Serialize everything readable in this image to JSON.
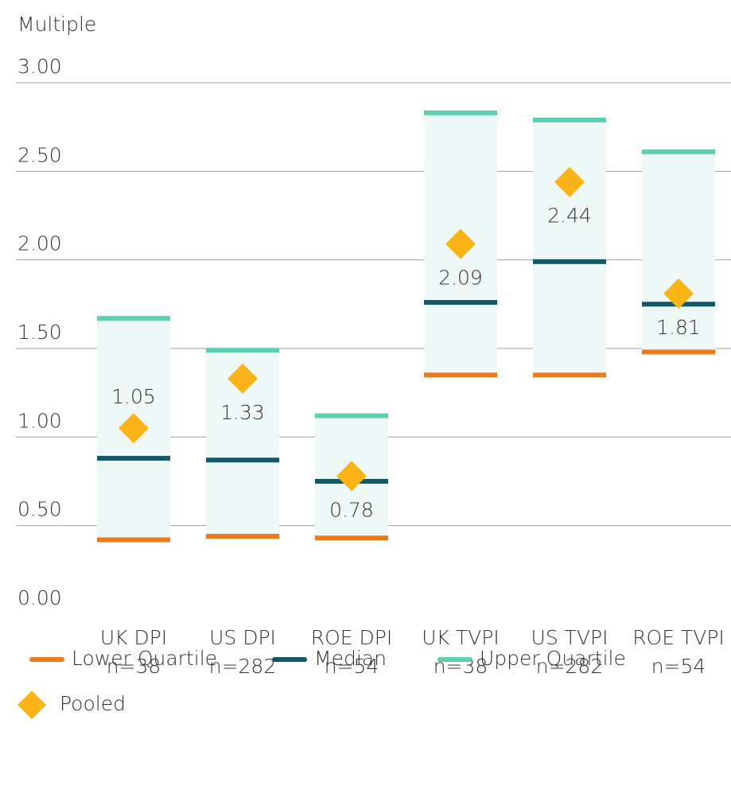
{
  "chart_data": {
    "type": "box",
    "y_axis_label": "Multiple",
    "categories": [
      "UK DPI",
      "US DPI",
      "ROE DPI",
      "UK TVPI",
      "US TVPI",
      "ROE TVPI"
    ],
    "sample_sizes": [
      "n=38",
      "n=282",
      "n=54",
      "n=38",
      "n=282",
      "n=54"
    ],
    "ylim": [
      0,
      3
    ],
    "yticks": [
      {
        "value": 0,
        "label": "0.00"
      },
      {
        "value": 0.5,
        "label": "0.50"
      },
      {
        "value": 1,
        "label": "1.00"
      },
      {
        "value": 1.5,
        "label": "1.50"
      },
      {
        "value": 2,
        "label": "2.00"
      },
      {
        "value": 2.5,
        "label": "2.50"
      },
      {
        "value": 3,
        "label": "3.00"
      }
    ],
    "grid": true,
    "box_color": "#eef8f6",
    "series": [
      {
        "name": "Lower Quartile",
        "color": "#ef7a1a",
        "values": [
          0.42,
          0.44,
          0.43,
          1.35,
          1.35,
          1.48
        ]
      },
      {
        "name": "Median",
        "color": "#0f5a69",
        "values": [
          0.88,
          0.87,
          0.75,
          1.76,
          1.99,
          1.75
        ]
      },
      {
        "name": "Upper Quartile",
        "color": "#5ccfb0",
        "values": [
          1.67,
          1.49,
          1.12,
          2.83,
          2.79,
          2.61
        ]
      },
      {
        "name": "Pooled",
        "color": "#fbb417",
        "values": [
          1.05,
          1.33,
          0.78,
          2.09,
          2.44,
          1.81
        ]
      }
    ]
  }
}
